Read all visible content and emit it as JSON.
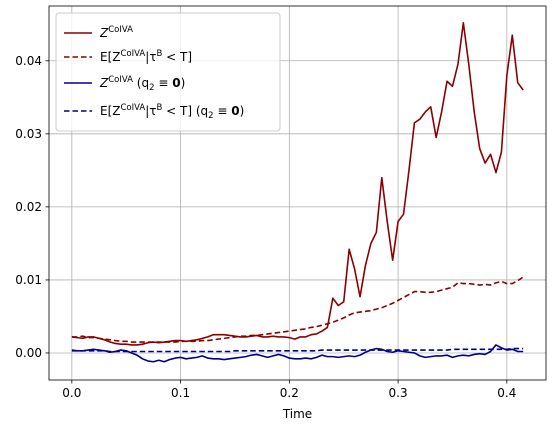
{
  "chart_data": {
    "type": "line",
    "title": "",
    "xlabel": "Time",
    "ylabel": "",
    "xlim": [
      -0.021,
      0.436
    ],
    "ylim": [
      -0.0037,
      0.0475
    ],
    "xticks": [
      0.0,
      0.1,
      0.2,
      0.3,
      0.4
    ],
    "xtick_labels": [
      "0.0",
      "0.1",
      "0.2",
      "0.3",
      "0.4"
    ],
    "yticks": [
      0.0,
      0.01,
      0.02,
      0.03,
      0.04
    ],
    "ytick_labels": [
      "0.00",
      "0.01",
      "0.02",
      "0.03",
      "0.04"
    ],
    "grid": true,
    "legend_position": "top-left",
    "x": [
      0.0,
      0.005,
      0.01,
      0.015,
      0.02,
      0.025,
      0.03,
      0.035,
      0.04,
      0.045,
      0.05,
      0.055,
      0.06,
      0.065,
      0.07,
      0.075,
      0.08,
      0.085,
      0.09,
      0.095,
      0.1,
      0.105,
      0.11,
      0.115,
      0.12,
      0.125,
      0.13,
      0.135,
      0.14,
      0.145,
      0.15,
      0.155,
      0.16,
      0.165,
      0.17,
      0.175,
      0.18,
      0.185,
      0.19,
      0.195,
      0.2,
      0.205,
      0.21,
      0.215,
      0.22,
      0.225,
      0.23,
      0.235,
      0.24,
      0.245,
      0.25,
      0.255,
      0.26,
      0.265,
      0.27,
      0.275,
      0.28,
      0.285,
      0.29,
      0.295,
      0.3,
      0.305,
      0.31,
      0.315,
      0.32,
      0.325,
      0.33,
      0.335,
      0.34,
      0.345,
      0.35,
      0.355,
      0.36,
      0.365,
      0.37,
      0.375,
      0.38,
      0.385,
      0.39,
      0.395,
      0.4,
      0.405,
      0.41,
      0.415
    ],
    "series": [
      {
        "name": "Z^CoIVA",
        "color": "#8b0000",
        "dash": "solid",
        "values": [
          0.0022,
          0.0021,
          0.002,
          0.0022,
          0.0022,
          0.002,
          0.0018,
          0.0015,
          0.0013,
          0.0012,
          0.0012,
          0.0011,
          0.0011,
          0.0012,
          0.0014,
          0.0015,
          0.0014,
          0.0015,
          0.0016,
          0.0017,
          0.0017,
          0.0016,
          0.0017,
          0.0018,
          0.002,
          0.0022,
          0.0025,
          0.0025,
          0.0025,
          0.0024,
          0.0023,
          0.0022,
          0.0022,
          0.0023,
          0.0024,
          0.0022,
          0.0022,
          0.0023,
          0.0022,
          0.0022,
          0.0021,
          0.0019,
          0.0022,
          0.0022,
          0.0025,
          0.0026,
          0.003,
          0.0035,
          0.0075,
          0.0065,
          0.007,
          0.0142,
          0.0115,
          0.0077,
          0.012,
          0.015,
          0.0165,
          0.024,
          0.018,
          0.0127,
          0.018,
          0.019,
          0.025,
          0.0315,
          0.032,
          0.033,
          0.0337,
          0.0295,
          0.033,
          0.0372,
          0.0365,
          0.0395,
          0.0452,
          0.0395,
          0.033,
          0.028,
          0.026,
          0.0272,
          0.0247,
          0.0275,
          0.038,
          0.0435,
          0.037,
          0.036
        ]
      },
      {
        "name": "E[Z^CoIVA|τ^B < T]",
        "color": "#8b0000",
        "dash": "dashed",
        "values": [
          0.0022,
          0.0022,
          0.0023,
          0.0021,
          0.0021,
          0.002,
          0.0019,
          0.0018,
          0.0017,
          0.0016,
          0.0016,
          0.0015,
          0.0015,
          0.0015,
          0.0015,
          0.0015,
          0.0015,
          0.0015,
          0.0015,
          0.0015,
          0.0016,
          0.0016,
          0.0016,
          0.0016,
          0.0017,
          0.0017,
          0.0018,
          0.0019,
          0.002,
          0.0021,
          0.0022,
          0.0023,
          0.0023,
          0.0024,
          0.0024,
          0.0025,
          0.0026,
          0.0027,
          0.0028,
          0.0029,
          0.003,
          0.0031,
          0.0032,
          0.0033,
          0.0035,
          0.0036,
          0.0038,
          0.004,
          0.0042,
          0.0045,
          0.0048,
          0.0052,
          0.0055,
          0.0056,
          0.0057,
          0.0058,
          0.006,
          0.0062,
          0.0065,
          0.0068,
          0.0072,
          0.0076,
          0.008,
          0.0084,
          0.0084,
          0.0083,
          0.0083,
          0.0084,
          0.0086,
          0.0088,
          0.009,
          0.0096,
          0.0095,
          0.0095,
          0.0094,
          0.0093,
          0.0094,
          0.0093,
          0.0096,
          0.0098,
          0.0095,
          0.0095,
          0.0099,
          0.0104
        ]
      },
      {
        "name": "Z^CoIVA (q₂ ≡ 0)",
        "color": "#00008b",
        "dash": "solid",
        "values": [
          0.0004,
          0.0003,
          0.0003,
          0.0004,
          0.0005,
          0.0004,
          0.0003,
          0.0001,
          0.0002,
          0.0004,
          0.0003,
          0.0,
          -0.0003,
          -0.0008,
          -0.0011,
          -0.0012,
          -0.001,
          -0.0012,
          -0.0009,
          -0.0007,
          -0.0006,
          -0.0008,
          -0.0007,
          -0.0006,
          -0.0004,
          -0.0007,
          -0.0008,
          -0.0008,
          -0.0009,
          -0.0008,
          -0.0007,
          -0.0006,
          -0.0005,
          -0.0003,
          -0.0002,
          -0.0004,
          -0.0006,
          -0.0004,
          -0.0002,
          -0.0004,
          -0.0007,
          -0.0008,
          -0.0008,
          -0.0007,
          -0.0008,
          -0.0006,
          -0.0003,
          -0.0005,
          -0.0005,
          -0.0006,
          -0.0005,
          -0.0004,
          -0.0005,
          -0.0003,
          0.0001,
          0.0004,
          0.0006,
          0.0005,
          0.0002,
          0.0001,
          0.0003,
          0.0002,
          0.0001,
          0.0,
          -0.0004,
          -0.0006,
          -0.0005,
          -0.0004,
          -0.0004,
          -0.0003,
          -0.0006,
          -0.0004,
          -0.0003,
          -0.0004,
          -0.0002,
          -0.0001,
          -0.0002,
          0.0002,
          0.0011,
          0.0007,
          0.0004,
          0.0005,
          0.0002,
          0.0002
        ]
      },
      {
        "name": "E[Z^CoIVA|τ^B < T] (q₂ ≡ 0)",
        "color": "#00008b",
        "dash": "dashed",
        "values": [
          0.0003,
          0.0003,
          0.0003,
          0.0003,
          0.0003,
          0.0003,
          0.0003,
          0.0002,
          0.0002,
          0.0002,
          0.0002,
          0.0002,
          0.0002,
          0.0002,
          0.0002,
          0.0002,
          0.0002,
          0.0002,
          0.0002,
          0.0002,
          0.0002,
          0.0002,
          0.0002,
          0.0002,
          0.0002,
          0.0002,
          0.0002,
          0.0002,
          0.0002,
          0.0002,
          0.0003,
          0.0003,
          0.0003,
          0.0003,
          0.0003,
          0.0003,
          0.0003,
          0.0003,
          0.0003,
          0.0003,
          0.0003,
          0.0003,
          0.0003,
          0.0003,
          0.0003,
          0.0003,
          0.0004,
          0.0004,
          0.0004,
          0.0004,
          0.0004,
          0.0004,
          0.0004,
          0.0004,
          0.0004,
          0.0004,
          0.0004,
          0.0004,
          0.0004,
          0.0004,
          0.0004,
          0.0004,
          0.0004,
          0.0004,
          0.0004,
          0.0004,
          0.0004,
          0.0004,
          0.0004,
          0.0004,
          0.0005,
          0.0005,
          0.0005,
          0.0005,
          0.0005,
          0.0005,
          0.0005,
          0.0005,
          0.0005,
          0.0005,
          0.0005,
          0.0006,
          0.0006,
          0.0006
        ]
      }
    ]
  },
  "legend": {
    "items": [
      {
        "label_main": "Z",
        "label_sup": "CoIVA",
        "label_tail": ""
      },
      {
        "label_main": "E[Z",
        "label_sup": "CoIVA",
        "label_tail": "|τ",
        "label_sup2": "B",
        "label_tail2": " < T]"
      },
      {
        "label_main": "Z",
        "label_sup": "CoIVA",
        "label_tail": " (q",
        "label_sub": "2",
        "label_tail2": " ≡ ",
        "label_bold": "0",
        "label_tail3": ")"
      },
      {
        "label_main": "E[Z",
        "label_sup": "CoIVA",
        "label_tail": "|τ",
        "label_sup2": "B",
        "label_tail2": " < T] (q",
        "label_sub": "2",
        "label_tail3": " ≡ ",
        "label_bold": "0",
        "label_tail4": ")"
      }
    ]
  }
}
